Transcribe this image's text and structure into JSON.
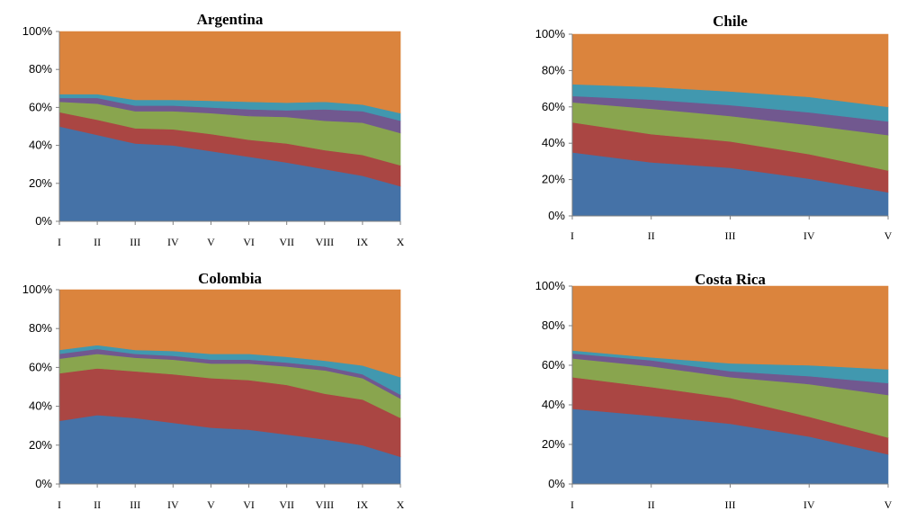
{
  "colors": [
    "#4572A7",
    "#AA4643",
    "#89A54E",
    "#71588F",
    "#4198AF",
    "#DB843D"
  ],
  "chart_data": [
    {
      "type": "area",
      "stacked": "percent",
      "title": "Argentina",
      "xlabel": "",
      "ylabel": "",
      "ylim": [
        0,
        100
      ],
      "yticks": [
        "0%",
        "20%",
        "40%",
        "60%",
        "80%",
        "100%"
      ],
      "categories": [
        "I",
        "II",
        "III",
        "IV",
        "V",
        "VI",
        "VII",
        "VIII",
        "IX",
        "X"
      ],
      "series": [
        {
          "values": [
            50,
            45.5,
            41,
            40,
            37,
            34,
            31,
            27.5,
            24,
            18.5
          ]
        },
        {
          "values": [
            7.5,
            8,
            8,
            8.5,
            9,
            9,
            10,
            10,
            11,
            11
          ]
        },
        {
          "values": [
            5.5,
            8.5,
            9,
            9.5,
            11,
            12.5,
            14,
            15.5,
            17,
            17
          ]
        },
        {
          "values": [
            2,
            3,
            3,
            3,
            3,
            3.5,
            3.5,
            6,
            6,
            6.5
          ]
        },
        {
          "values": [
            2,
            2,
            3,
            3,
            3.5,
            4,
            4,
            4,
            3.5,
            4
          ]
        },
        {
          "values": [
            33,
            33,
            36,
            36,
            36.5,
            37,
            37.5,
            37,
            38.5,
            43
          ]
        }
      ]
    },
    {
      "type": "area",
      "stacked": "percent",
      "title": "Chile",
      "xlabel": "",
      "ylabel": "",
      "ylim": [
        0,
        100
      ],
      "yticks": [
        "0%",
        "20%",
        "40%",
        "60%",
        "80%",
        "100%"
      ],
      "categories": [
        "I",
        "II",
        "III",
        "IV",
        "V"
      ],
      "series": [
        {
          "values": [
            35,
            29.5,
            26.5,
            20.5,
            13
          ]
        },
        {
          "values": [
            16.5,
            15.5,
            14.5,
            13.5,
            12
          ]
        },
        {
          "values": [
            11,
            14,
            14,
            16,
            19.5
          ]
        },
        {
          "values": [
            3.5,
            5,
            6,
            7,
            7.5
          ]
        },
        {
          "values": [
            6.5,
            7,
            7.5,
            8.5,
            8
          ]
        },
        {
          "values": [
            27.5,
            29,
            31.5,
            34.5,
            40
          ]
        }
      ]
    },
    {
      "type": "area",
      "stacked": "percent",
      "title": "Colombia",
      "xlabel": "",
      "ylabel": "",
      "ylim": [
        0,
        100
      ],
      "yticks": [
        "0%",
        "20%",
        "40%",
        "60%",
        "80%",
        "100%"
      ],
      "categories": [
        "I",
        "II",
        "III",
        "IV",
        "V",
        "VI",
        "VII",
        "VIII",
        "IX",
        "X"
      ],
      "series": [
        {
          "values": [
            32.5,
            35.5,
            34,
            31.5,
            29,
            28,
            25.5,
            23,
            20,
            14
          ]
        },
        {
          "values": [
            24.5,
            24,
            24,
            25,
            25.5,
            25.5,
            25.5,
            23.5,
            23.5,
            20
          ]
        },
        {
          "values": [
            7.5,
            7.5,
            7,
            7.5,
            7.5,
            8.5,
            9.5,
            12,
            11,
            10
          ]
        },
        {
          "values": [
            2.5,
            2.5,
            2,
            2,
            2,
            2,
            2,
            2,
            2,
            2
          ]
        },
        {
          "values": [
            2,
            2,
            2,
            2.5,
            3,
            3,
            3,
            3,
            4.5,
            9
          ]
        },
        {
          "values": [
            31,
            28.5,
            31,
            31.5,
            33,
            33,
            34.5,
            36.5,
            39,
            45
          ]
        }
      ]
    },
    {
      "type": "area",
      "stacked": "percent",
      "title": "Costa Rica",
      "xlabel": "",
      "ylabel": "",
      "ylim": [
        0,
        100
      ],
      "yticks": [
        "0%",
        "20%",
        "40%",
        "60%",
        "80%",
        "100%"
      ],
      "categories": [
        "I",
        "II",
        "III",
        "IV",
        "V"
      ],
      "series": [
        {
          "values": [
            38,
            34.5,
            30.5,
            24,
            15
          ]
        },
        {
          "values": [
            16,
            14.5,
            13,
            10,
            8.5
          ]
        },
        {
          "values": [
            9.5,
            10.5,
            10.5,
            16.5,
            21.5
          ]
        },
        {
          "values": [
            2.5,
            3,
            3,
            4,
            6
          ]
        },
        {
          "values": [
            1.5,
            1.5,
            4,
            5.5,
            7
          ]
        },
        {
          "values": [
            32.5,
            36,
            39,
            40,
            42
          ]
        }
      ]
    }
  ]
}
